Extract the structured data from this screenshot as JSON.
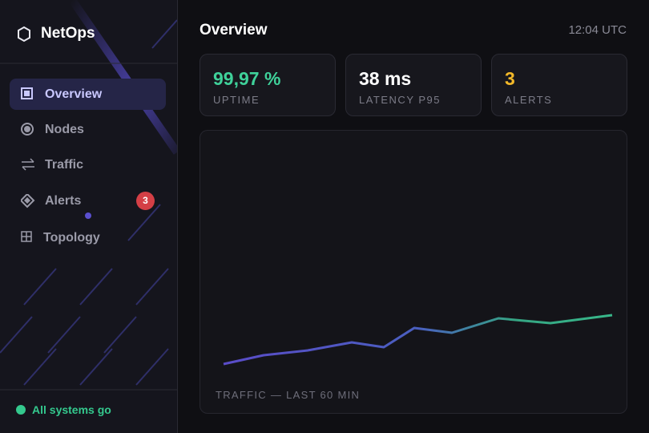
{
  "sidebar": {
    "brand": "NetOps",
    "nav": [
      {
        "label": "Overview"
      },
      {
        "label": "Nodes"
      },
      {
        "label": "Traffic"
      },
      {
        "label": "Alerts",
        "badge": "3"
      },
      {
        "label": "Topology"
      }
    ],
    "status": "All systems go"
  },
  "header": {
    "title": "Overview",
    "time": "12:04 UTC"
  },
  "stats": [
    {
      "value": "99,97 %",
      "label": "UPTIME"
    },
    {
      "value": "38 ms",
      "label": "LATENCY P95"
    },
    {
      "value": "3",
      "label": "ALERTS"
    }
  ],
  "panel": {
    "caption": "TRAFFIC — LAST 60 MIN"
  }
}
